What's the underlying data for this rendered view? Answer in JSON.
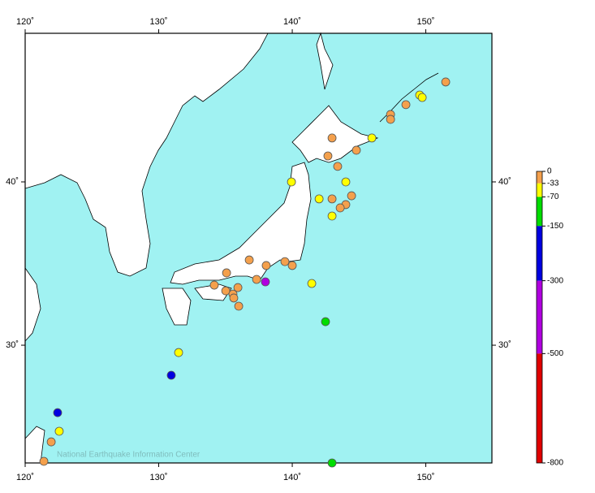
{
  "chart_data": {
    "type": "scatter",
    "watermark": "National Earthquake Information Center",
    "xlim": [
      120,
      154.95
    ],
    "ylim": [
      22.79,
      49.1
    ],
    "xticks": [
      {
        "value": 120,
        "label": "120˚"
      },
      {
        "value": 130,
        "label": "130˚"
      },
      {
        "value": 140,
        "label": "140˚"
      },
      {
        "value": 150,
        "label": "150˚"
      }
    ],
    "yticks": [
      {
        "value": 30,
        "label": "30˚"
      },
      {
        "value": 40,
        "label": "40˚"
      }
    ],
    "background": "#a0f2f2",
    "series": [
      {
        "color": "#f4a04c",
        "x": [
          151.49,
          148.51,
          147.36,
          147.36,
          142.98,
          144.8,
          142.67,
          143.4,
          144.44,
          142.98,
          144.01,
          143.59,
          136.78,
          138.05,
          139.45,
          140.0,
          135.08,
          137.33,
          134.16,
          135.02,
          135.56,
          135.62,
          135.93,
          135.99,
          121.95,
          121.4
        ],
        "y": [
          46.12,
          44.73,
          44.13,
          43.83,
          42.69,
          41.94,
          41.59,
          40.95,
          39.15,
          38.96,
          38.61,
          38.41,
          35.22,
          34.88,
          35.12,
          34.88,
          34.43,
          34.03,
          33.68,
          33.33,
          33.13,
          32.89,
          33.53,
          32.39,
          24.08,
          22.89
        ]
      },
      {
        "color": "#ffff00",
        "x": [
          149.54,
          149.73,
          145.96,
          144.01,
          139.94,
          142.01,
          142.98,
          141.46,
          131.49,
          122.55
        ],
        "y": [
          45.32,
          45.17,
          42.69,
          40.0,
          40.0,
          38.96,
          37.91,
          33.78,
          29.55,
          24.73
        ]
      },
      {
        "color": "#00dd00",
        "x": [
          142.49,
          142.98
        ],
        "y": [
          31.44,
          22.79
        ]
      },
      {
        "color": "#0000e0",
        "x": [
          130.94,
          122.43
        ],
        "y": [
          28.16,
          25.87
        ]
      },
      {
        "color": "#b000e0",
        "x": [
          137.99
        ],
        "y": [
          33.88
        ]
      }
    ],
    "colorbar": {
      "lim": [
        0,
        -800
      ],
      "ticks": [
        0,
        -33,
        -70,
        -150,
        -300,
        -500,
        -800
      ],
      "colors": [
        "#f4a04c",
        "#ffff00",
        "#00dd00",
        "#0000e0",
        "#b000e0",
        "#e00000"
      ]
    }
  }
}
